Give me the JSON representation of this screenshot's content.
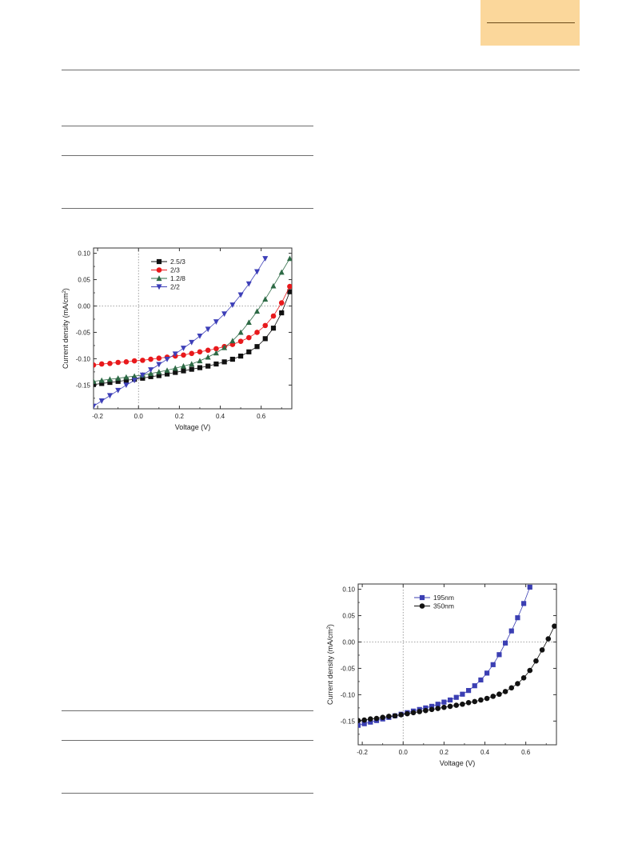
{
  "chart_data": [
    {
      "type": "scatter",
      "xlabel": "Voltage (V)",
      "ylabel": "Current density (mA/cm²)",
      "ylabel_main": "Current density (mA/cm",
      "ylabel_sup": "2",
      "ylabel_tail": ")",
      "xlim": [
        -0.22,
        0.75
      ],
      "ylim": [
        -0.195,
        0.11
      ],
      "xticks": [
        "-0.2",
        "0.0",
        "0.2",
        "0.4",
        "0.6"
      ],
      "yticks": [
        "0.10",
        "0.05",
        "0.00",
        "-0.05",
        "-0.10",
        "-0.15"
      ],
      "ytick_values": [
        0.1,
        0.05,
        0.0,
        -0.05,
        -0.1,
        -0.15
      ],
      "xtick_values": [
        -0.2,
        0.0,
        0.2,
        0.4,
        0.6
      ],
      "legend_position": "top-left",
      "reference_lines": {
        "x": 0.0,
        "y": 0.0
      },
      "series": [
        {
          "name": "2.5/3",
          "color": "#111111",
          "marker": "square",
          "x": [
            -0.22,
            -0.18,
            -0.14,
            -0.1,
            -0.06,
            -0.02,
            0.02,
            0.06,
            0.1,
            0.14,
            0.18,
            0.22,
            0.26,
            0.3,
            0.34,
            0.38,
            0.42,
            0.46,
            0.5,
            0.54,
            0.58,
            0.62,
            0.66,
            0.7,
            0.74
          ],
          "y": [
            -0.149,
            -0.147,
            -0.145,
            -0.143,
            -0.141,
            -0.139,
            -0.137,
            -0.134,
            -0.132,
            -0.129,
            -0.126,
            -0.123,
            -0.12,
            -0.117,
            -0.114,
            -0.11,
            -0.106,
            -0.101,
            -0.095,
            -0.087,
            -0.077,
            -0.062,
            -0.042,
            -0.013,
            0.027
          ]
        },
        {
          "name": "2/3",
          "color": "#e8191c",
          "marker": "circle",
          "x": [
            -0.22,
            -0.18,
            -0.14,
            -0.1,
            -0.06,
            -0.02,
            0.02,
            0.06,
            0.1,
            0.14,
            0.18,
            0.22,
            0.26,
            0.3,
            0.34,
            0.38,
            0.42,
            0.46,
            0.5,
            0.54,
            0.58,
            0.62,
            0.66,
            0.7,
            0.74
          ],
          "y": [
            -0.112,
            -0.11,
            -0.109,
            -0.107,
            -0.106,
            -0.104,
            -0.103,
            -0.101,
            -0.099,
            -0.097,
            -0.095,
            -0.093,
            -0.09,
            -0.087,
            -0.084,
            -0.081,
            -0.077,
            -0.073,
            -0.067,
            -0.06,
            -0.05,
            -0.037,
            -0.019,
            0.006,
            0.037
          ]
        },
        {
          "name": "1.2/8",
          "color": "#2d6a45",
          "marker": "triangle-up",
          "x": [
            -0.22,
            -0.18,
            -0.14,
            -0.1,
            -0.06,
            -0.02,
            0.02,
            0.06,
            0.1,
            0.14,
            0.18,
            0.22,
            0.26,
            0.3,
            0.34,
            0.38,
            0.42,
            0.46,
            0.5,
            0.54,
            0.58,
            0.62,
            0.66,
            0.7,
            0.74
          ],
          "y": [
            -0.143,
            -0.141,
            -0.139,
            -0.137,
            -0.135,
            -0.133,
            -0.131,
            -0.128,
            -0.125,
            -0.122,
            -0.118,
            -0.114,
            -0.11,
            -0.104,
            -0.097,
            -0.089,
            -0.079,
            -0.066,
            -0.05,
            -0.031,
            -0.01,
            0.013,
            0.038,
            0.064,
            0.09
          ]
        },
        {
          "name": "2/2",
          "color": "#3d3fb8",
          "marker": "triangle-down",
          "x": [
            -0.22,
            -0.18,
            -0.14,
            -0.1,
            -0.06,
            -0.02,
            0.02,
            0.06,
            0.1,
            0.14,
            0.18,
            0.22,
            0.26,
            0.3,
            0.34,
            0.38,
            0.42,
            0.46,
            0.5,
            0.54,
            0.58,
            0.62
          ],
          "y": [
            -0.19,
            -0.18,
            -0.17,
            -0.16,
            -0.15,
            -0.141,
            -0.131,
            -0.121,
            -0.111,
            -0.101,
            -0.091,
            -0.08,
            -0.069,
            -0.057,
            -0.044,
            -0.03,
            -0.015,
            0.002,
            0.021,
            0.042,
            0.065,
            0.09
          ]
        }
      ]
    },
    {
      "type": "scatter",
      "xlabel": "Voltage (V)",
      "ylabel": "Current density (mA/cm²)",
      "ylabel_main": "Current density (mA/cm",
      "ylabel_sup": "2",
      "ylabel_tail": ")",
      "xlim": [
        -0.22,
        0.75
      ],
      "ylim": [
        -0.195,
        0.11
      ],
      "xticks": [
        "-0.2",
        "0.0",
        "0.2",
        "0.4",
        "0.6"
      ],
      "yticks": [
        "0.10",
        "0.05",
        "0.00",
        "-0.05",
        "-0.10",
        "-0.15"
      ],
      "ytick_values": [
        0.1,
        0.05,
        0.0,
        -0.05,
        -0.1,
        -0.15
      ],
      "xtick_values": [
        -0.2,
        0.0,
        0.2,
        0.4,
        0.6
      ],
      "legend_position": "top-left",
      "reference_lines": {
        "x": 0.0,
        "y": 0.0
      },
      "series": [
        {
          "name": "195nm",
          "color": "#3b3fb3",
          "marker": "square",
          "x": [
            -0.22,
            -0.19,
            -0.16,
            -0.13,
            -0.1,
            -0.07,
            -0.04,
            -0.01,
            0.02,
            0.05,
            0.08,
            0.11,
            0.14,
            0.17,
            0.2,
            0.23,
            0.26,
            0.29,
            0.32,
            0.35,
            0.38,
            0.41,
            0.44,
            0.47,
            0.5,
            0.53,
            0.56,
            0.59,
            0.62
          ],
          "y": [
            -0.158,
            -0.155,
            -0.152,
            -0.149,
            -0.146,
            -0.143,
            -0.14,
            -0.137,
            -0.134,
            -0.131,
            -0.128,
            -0.125,
            -0.122,
            -0.118,
            -0.114,
            -0.11,
            -0.105,
            -0.099,
            -0.092,
            -0.083,
            -0.072,
            -0.059,
            -0.043,
            -0.024,
            -0.002,
            0.021,
            0.046,
            0.073,
            0.104
          ]
        },
        {
          "name": "350nm",
          "color": "#111111",
          "marker": "circle",
          "x": [
            -0.22,
            -0.19,
            -0.16,
            -0.13,
            -0.1,
            -0.07,
            -0.04,
            -0.01,
            0.02,
            0.05,
            0.08,
            0.11,
            0.14,
            0.17,
            0.2,
            0.23,
            0.26,
            0.29,
            0.32,
            0.35,
            0.38,
            0.41,
            0.44,
            0.47,
            0.5,
            0.53,
            0.56,
            0.59,
            0.62,
            0.65,
            0.68,
            0.71,
            0.74
          ],
          "y": [
            -0.149,
            -0.148,
            -0.146,
            -0.145,
            -0.143,
            -0.141,
            -0.14,
            -0.138,
            -0.136,
            -0.134,
            -0.132,
            -0.13,
            -0.128,
            -0.126,
            -0.124,
            -0.122,
            -0.12,
            -0.118,
            -0.115,
            -0.113,
            -0.11,
            -0.107,
            -0.103,
            -0.099,
            -0.094,
            -0.087,
            -0.079,
            -0.068,
            -0.054,
            -0.036,
            -0.015,
            0.006,
            0.03
          ]
        }
      ]
    }
  ]
}
